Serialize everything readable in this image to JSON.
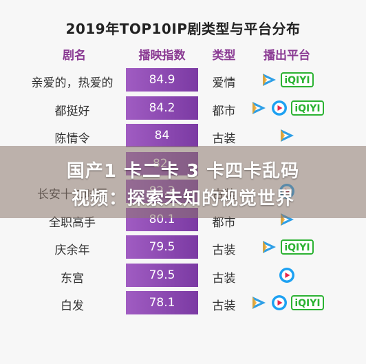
{
  "chart_data": {
    "type": "table",
    "title": "2019年TOP10IP剧类型与平台分布",
    "headers": [
      "剧名",
      "播映指数",
      "类型",
      "播出平台"
    ],
    "rows": [
      {
        "name": "亲爱的，热爱的",
        "value": 84.9,
        "value_text": "84.9",
        "category": "爱情",
        "platforms": [
          "tencent-video-icon",
          "iqiyi-logo"
        ]
      },
      {
        "name": "都挺好",
        "value": 84.2,
        "value_text": "84.2",
        "category": "都市",
        "platforms": [
          "tencent-video-icon",
          "youku-icon",
          "iqiyi-logo"
        ]
      },
      {
        "name": "陈情令",
        "value": 84,
        "value_text": "84",
        "category": "古装",
        "platforms": [
          "tencent-video-icon"
        ]
      },
      {
        "name": "",
        "value": null,
        "value_text": "82.",
        "category": "",
        "platforms": []
      },
      {
        "name": "长安十二时辰",
        "value": 82.3,
        "value_text": "82.3",
        "category": "古装",
        "platforms": [
          "youku-icon"
        ]
      },
      {
        "name": "全职高手",
        "value": 80.1,
        "value_text": "80.1",
        "category": "都市",
        "platforms": [
          "tencent-video-icon"
        ]
      },
      {
        "name": "庆余年",
        "value": 79.5,
        "value_text": "79.5",
        "category": "古装",
        "platforms": [
          "tencent-video-icon",
          "iqiyi-logo"
        ]
      },
      {
        "name": "东宫",
        "value": 79.5,
        "value_text": "79.5",
        "category": "古装",
        "platforms": [
          "youku-icon"
        ]
      },
      {
        "name": "白发",
        "value": 78.1,
        "value_text": "78.1",
        "category": "古装",
        "platforms": [
          "tencent-video-icon",
          "youku-icon",
          "iqiyi-logo"
        ]
      }
    ],
    "value_range": [
      0,
      100
    ],
    "colors": {
      "bar": "#8b44b0",
      "header_text": "#8a3a93",
      "tencent": "#2e9fe6",
      "tencent_accent": "#f5a623",
      "youku": "#1da1f2",
      "youku_accent": "#e8234a",
      "iqiyi": "#2bb232"
    }
  },
  "platform_labels": {
    "iqiyi-logo": "iQIYI"
  },
  "banner": {
    "line1": "国产1 卡二卡 3 卡四卡乱码",
    "line2": "视频：探索未知的视觉世界"
  }
}
